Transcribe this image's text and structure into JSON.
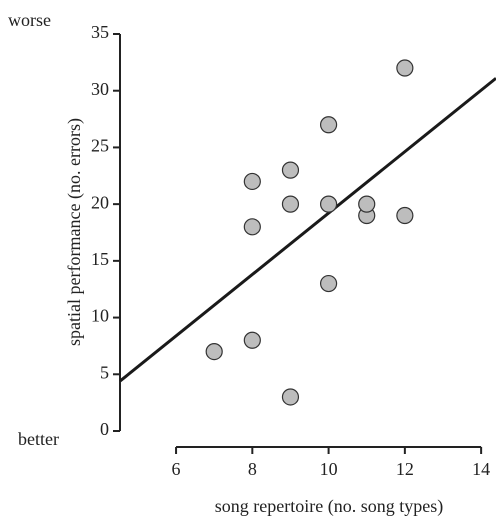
{
  "chart_data": {
    "type": "scatter",
    "y_label": "spatial performance (no. errors)",
    "x_label": "song repertoire (no. song types)",
    "annotations": [
      "worse",
      "better"
    ],
    "x": [
      7,
      8,
      8,
      8,
      9,
      9,
      9,
      10,
      10,
      10,
      11,
      11,
      12,
      12
    ],
    "values": [
      7,
      8,
      18,
      22,
      3,
      20,
      23,
      13,
      20,
      27,
      19,
      20,
      19,
      32
    ],
    "color": "#bdbdbd",
    "fit_line": {
      "x": [
        4.53,
        14.39
      ],
      "values": [
        4.4,
        31.1
      ],
      "color": "#1a1a1a"
    },
    "xlim": [
      4.53,
      14.39
    ],
    "xticks": [
      6,
      8,
      10,
      12,
      14
    ],
    "ylim": [
      0,
      35
    ],
    "yticks": [
      0,
      5,
      10,
      15,
      20,
      25,
      30,
      35
    ]
  }
}
